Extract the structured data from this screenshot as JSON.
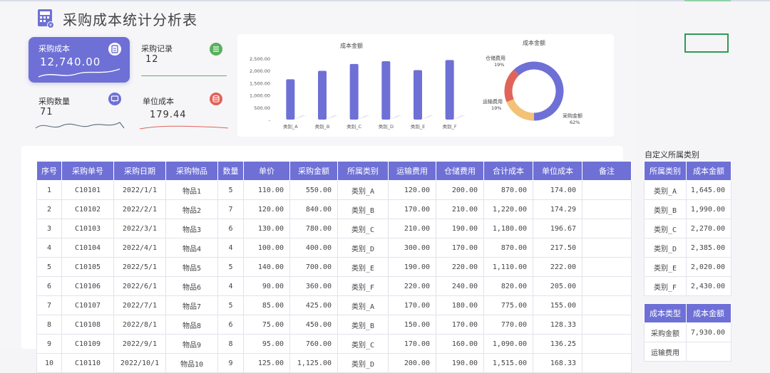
{
  "title": "采购成本统计分析表",
  "cards": [
    {
      "label": "采购成本",
      "value": "12,740.00",
      "icon": "document-icon"
    },
    {
      "label": "采购记录",
      "value": "12",
      "icon": "list-icon"
    },
    {
      "label": "采购数量",
      "value": "71",
      "icon": "chat-icon"
    },
    {
      "label": "单位成本",
      "value": "179.44",
      "icon": "database-icon"
    }
  ],
  "colors": {
    "accent": "#6e70d6",
    "green": "#58b15d",
    "red": "#e0645a",
    "yellow": "#f2c277"
  },
  "chart_data": [
    {
      "type": "bar",
      "title": "成本金额",
      "categories": [
        "类别_A",
        "类别_B",
        "类别_C",
        "类别_D",
        "类别_E",
        "类别_F"
      ],
      "values": [
        1645,
        1990,
        2270,
        2385,
        2020,
        2430
      ],
      "yticks": [
        "2,500.00",
        "2,000.00",
        "1,500.00",
        "1,000.00",
        "500.00",
        "-"
      ],
      "ylim": [
        0,
        2500
      ]
    },
    {
      "type": "pie",
      "title": "成本金额",
      "slices": [
        {
          "label": "采购金额",
          "pct": "62%",
          "value": 62,
          "color": "#6e70d6"
        },
        {
          "label": "运输费用",
          "pct": "19%",
          "value": 19,
          "color": "#f2c277"
        },
        {
          "label": "仓储费用",
          "pct": "19%",
          "value": 19,
          "color": "#e0645a"
        }
      ]
    }
  ],
  "table": {
    "headers": [
      "序号",
      "采购单号",
      "采购日期",
      "采购物品",
      "数量",
      "单价",
      "采购金额",
      "所属类别",
      "运输费用",
      "仓储费用",
      "合计成本",
      "单位成本",
      "备注"
    ],
    "rows": [
      [
        "1",
        "C10101",
        "2022/1/1",
        "物品1",
        "5",
        "110.00",
        "550.00",
        "类别_A",
        "120.00",
        "200.00",
        "870.00",
        "174.00",
        ""
      ],
      [
        "2",
        "C10102",
        "2022/2/1",
        "物品2",
        "7",
        "120.00",
        "840.00",
        "类别_B",
        "170.00",
        "210.00",
        "1,220.00",
        "174.29",
        ""
      ],
      [
        "3",
        "C10103",
        "2022/3/1",
        "物品3",
        "6",
        "130.00",
        "780.00",
        "类别_C",
        "210.00",
        "190.00",
        "1,180.00",
        "196.67",
        ""
      ],
      [
        "4",
        "C10104",
        "2022/4/1",
        "物品4",
        "4",
        "100.00",
        "400.00",
        "类别_D",
        "300.00",
        "170.00",
        "870.00",
        "217.50",
        ""
      ],
      [
        "5",
        "C10105",
        "2022/5/1",
        "物品5",
        "5",
        "140.00",
        "700.00",
        "类别_E",
        "190.00",
        "220.00",
        "1,110.00",
        "222.00",
        ""
      ],
      [
        "6",
        "C10106",
        "2022/6/1",
        "物品6",
        "4",
        "90.00",
        "360.00",
        "类别_F",
        "220.00",
        "240.00",
        "820.00",
        "205.00",
        ""
      ],
      [
        "7",
        "C10107",
        "2022/7/1",
        "物品7",
        "5",
        "85.00",
        "425.00",
        "类别_A",
        "170.00",
        "180.00",
        "775.00",
        "155.00",
        ""
      ],
      [
        "8",
        "C10108",
        "2022/8/1",
        "物品8",
        "6",
        "75.00",
        "450.00",
        "类别_B",
        "150.00",
        "170.00",
        "770.00",
        "128.33",
        ""
      ],
      [
        "9",
        "C10109",
        "2022/9/1",
        "物品9",
        "8",
        "95.00",
        "760.00",
        "类别_C",
        "170.00",
        "160.00",
        "1,090.00",
        "136.25",
        ""
      ],
      [
        "10",
        "C10110",
        "2022/10/1",
        "物品10",
        "9",
        "125.00",
        "1,125.00",
        "类别_D",
        "200.00",
        "190.00",
        "1,515.00",
        "168.33",
        ""
      ]
    ]
  },
  "side": {
    "title": "自定义所属类别",
    "headers1": [
      "所属类别",
      "成本金额"
    ],
    "rows1": [
      [
        "类别_A",
        "1,645.00"
      ],
      [
        "类别_B",
        "1,990.00"
      ],
      [
        "类别_C",
        "2,270.00"
      ],
      [
        "类别_D",
        "2,385.00"
      ],
      [
        "类别_E",
        "2,020.00"
      ],
      [
        "类别_F",
        "2,430.00"
      ]
    ],
    "headers2": [
      "成本类型",
      "成本金额"
    ],
    "rows2": [
      [
        "采购金额",
        "7,930.00"
      ],
      [
        "运输费用",
        ""
      ]
    ]
  }
}
